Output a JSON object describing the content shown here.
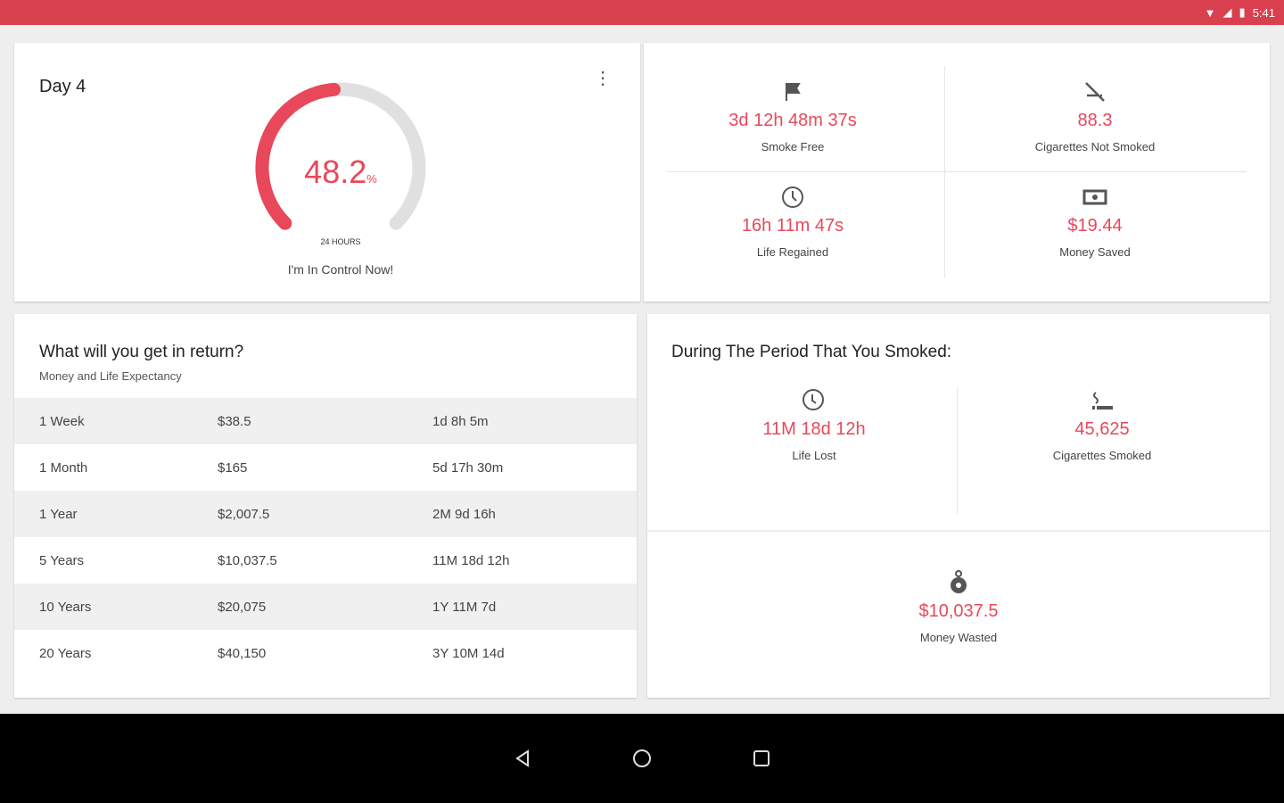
{
  "status_bar": {
    "time": "5:41",
    "color": "#d9404f"
  },
  "progress_card": {
    "title": "Day 4",
    "percent": 48.2,
    "percent_text": "48.2",
    "percent_unit": "%",
    "gauge_label": "24 HOURS",
    "caption": "I'm In Control Now!",
    "accent": "#e8485a"
  },
  "stats": [
    {
      "icon": "flag-icon",
      "value": "3d 12h 48m 37s",
      "label": "Smoke Free"
    },
    {
      "icon": "no-smoking-icon",
      "value": "88.3",
      "label": "Cigarettes Not Smoked"
    },
    {
      "icon": "clock-icon",
      "value": "16h 11m 47s",
      "label": "Life Regained"
    },
    {
      "icon": "money-icon",
      "value": "$19.44",
      "label": "Money Saved"
    }
  ],
  "returns": {
    "title": "What will you get in return?",
    "subtitle": "Money and Life Expectancy",
    "rows": [
      [
        "1 Week",
        "$38.5",
        "1d 8h 5m"
      ],
      [
        "1 Month",
        "$165",
        "5d 17h 30m"
      ],
      [
        "1 Year",
        "$2,007.5",
        "2M 9d 16h"
      ],
      [
        "5 Years",
        "$10,037.5",
        "11M 18d 12h"
      ],
      [
        "10 Years",
        "$20,075",
        "1Y 11M 7d"
      ],
      [
        "20 Years",
        "$40,150",
        "3Y 10M 14d"
      ]
    ]
  },
  "smoked": {
    "title": "During The Period That You Smoked:",
    "items": [
      {
        "icon": "clock-history-icon",
        "value": "11M 18d 12h",
        "label": "Life Lost"
      },
      {
        "icon": "cigarette-icon",
        "value": "45,625",
        "label": "Cigarettes Smoked"
      },
      {
        "icon": "money-bag-icon",
        "value": "$10,037.5",
        "label": "Money Wasted"
      }
    ]
  }
}
